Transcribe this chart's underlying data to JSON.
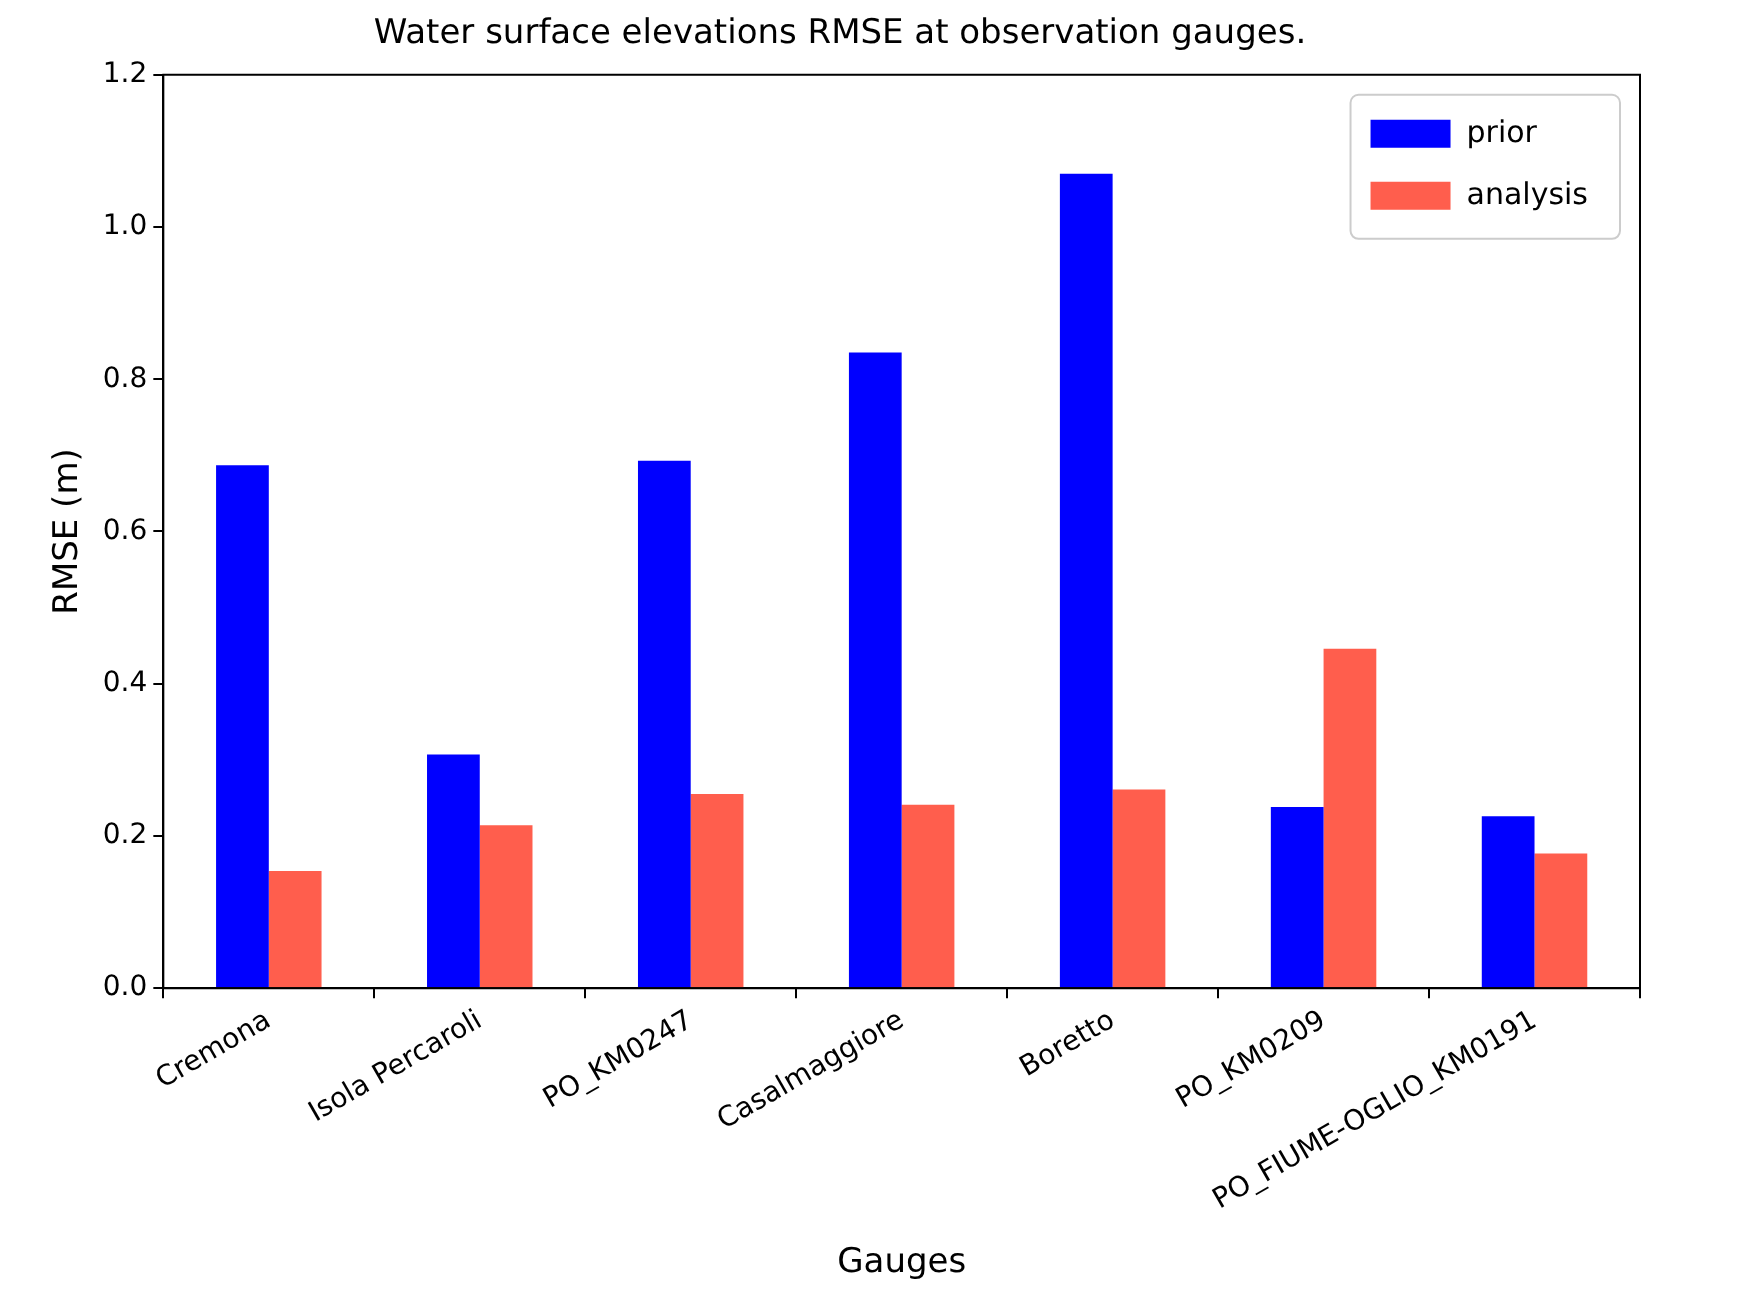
{
  "chart_data": {
    "type": "bar",
    "title": "Water surface elevations RMSE at observation gauges.",
    "xlabel": "Gauges",
    "ylabel": "RMSE (m)",
    "categories": [
      "Cremona",
      "Isola Percaroli",
      "PO_KM0247",
      "Casalmaggiore",
      "Boretto",
      "PO_KM0209",
      "PO_FIUME-OGLIO_KM0191"
    ],
    "series": [
      {
        "name": "prior",
        "color": "#0000ff",
        "values": [
          0.687,
          0.307,
          0.693,
          0.835,
          1.07,
          0.238,
          0.226
        ]
      },
      {
        "name": "analysis",
        "color": "#ff5e4d",
        "values": [
          0.154,
          0.214,
          0.255,
          0.241,
          0.261,
          0.446,
          0.177
        ]
      }
    ],
    "ylim": [
      0,
      1.2
    ],
    "yticks": [
      {
        "value": 0,
        "label": "0.0"
      },
      {
        "value": 0.2,
        "label": "0.2"
      },
      {
        "value": 0.4,
        "label": "0.4"
      },
      {
        "value": 0.6,
        "label": "0.6"
      },
      {
        "value": 0.8,
        "label": "0.8"
      },
      {
        "value": 1.0,
        "label": "1.0"
      },
      {
        "value": 1.2,
        "label": "1.2"
      }
    ],
    "grid": false,
    "legend": "top right"
  }
}
